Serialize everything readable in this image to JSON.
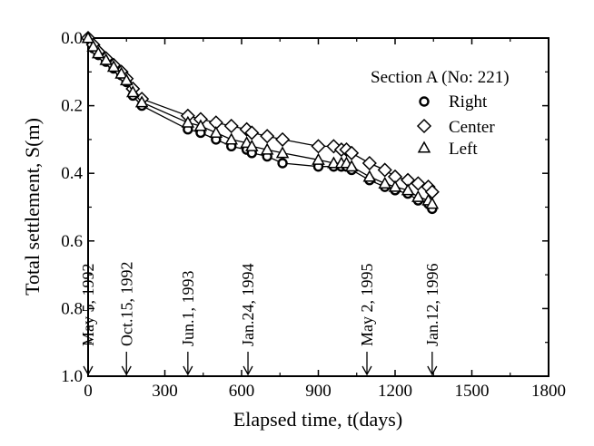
{
  "chart_data": {
    "type": "scatter",
    "xlabel": "Elapsed time,  t(days)",
    "ylabel": "Total settlement,  S(m)",
    "xlim": [
      0,
      1800
    ],
    "ylim": [
      0,
      1.0
    ],
    "y_inverted": true,
    "grid": false,
    "xticks": [
      "0",
      "300",
      "600",
      "900",
      "1200",
      "1500",
      "1800"
    ],
    "yticks": [
      "0.0",
      "0.2",
      "0.4",
      "0.6",
      "0.8",
      "1.0"
    ],
    "legend": {
      "title": "Section A (No: 221)",
      "placement": "top-right"
    },
    "series": [
      {
        "name": "Right",
        "marker": "circle",
        "x": [
          0,
          20,
          40,
          70,
          100,
          130,
          150,
          175,
          210,
          390,
          440,
          500,
          560,
          620,
          640,
          700,
          760,
          900,
          960,
          990,
          1010,
          1030,
          1100,
          1160,
          1200,
          1250,
          1290,
          1330,
          1345
        ],
        "y": [
          0.0,
          0.03,
          0.05,
          0.07,
          0.09,
          0.11,
          0.13,
          0.17,
          0.2,
          0.27,
          0.28,
          0.3,
          0.32,
          0.33,
          0.34,
          0.35,
          0.37,
          0.38,
          0.38,
          0.38,
          0.38,
          0.39,
          0.42,
          0.44,
          0.45,
          0.46,
          0.48,
          0.49,
          0.505
        ]
      },
      {
        "name": "Center",
        "marker": "diamond",
        "x": [
          0,
          20,
          40,
          70,
          100,
          130,
          150,
          175,
          210,
          390,
          440,
          500,
          560,
          620,
          640,
          700,
          760,
          900,
          960,
          990,
          1010,
          1030,
          1100,
          1160,
          1200,
          1250,
          1290,
          1330,
          1345
        ],
        "y": [
          0.0,
          0.02,
          0.04,
          0.06,
          0.08,
          0.1,
          0.12,
          0.15,
          0.18,
          0.23,
          0.24,
          0.25,
          0.26,
          0.27,
          0.28,
          0.29,
          0.3,
          0.32,
          0.32,
          0.33,
          0.33,
          0.34,
          0.37,
          0.39,
          0.41,
          0.42,
          0.43,
          0.44,
          0.455
        ]
      },
      {
        "name": "Left",
        "marker": "triangle",
        "x": [
          0,
          20,
          40,
          70,
          100,
          130,
          150,
          175,
          210,
          390,
          440,
          500,
          560,
          620,
          640,
          700,
          760,
          900,
          960,
          990,
          1010,
          1030,
          1100,
          1160,
          1200,
          1250,
          1290,
          1330,
          1345
        ],
        "y": [
          0.0,
          0.025,
          0.045,
          0.065,
          0.085,
          0.105,
          0.125,
          0.16,
          0.19,
          0.25,
          0.26,
          0.28,
          0.3,
          0.31,
          0.32,
          0.33,
          0.34,
          0.36,
          0.37,
          0.37,
          0.37,
          0.38,
          0.41,
          0.43,
          0.44,
          0.45,
          0.47,
          0.48,
          0.49
        ]
      }
    ],
    "annotations": [
      {
        "label": "May 5, 1992",
        "x": 0
      },
      {
        "label": "Oct.15, 1992",
        "x": 150
      },
      {
        "label": "Jun.1, 1993",
        "x": 390
      },
      {
        "label": "Jan.24, 1994",
        "x": 625
      },
      {
        "label": "May 2, 1995",
        "x": 1090
      },
      {
        "label": "Jan.12, 1996",
        "x": 1345
      }
    ]
  }
}
